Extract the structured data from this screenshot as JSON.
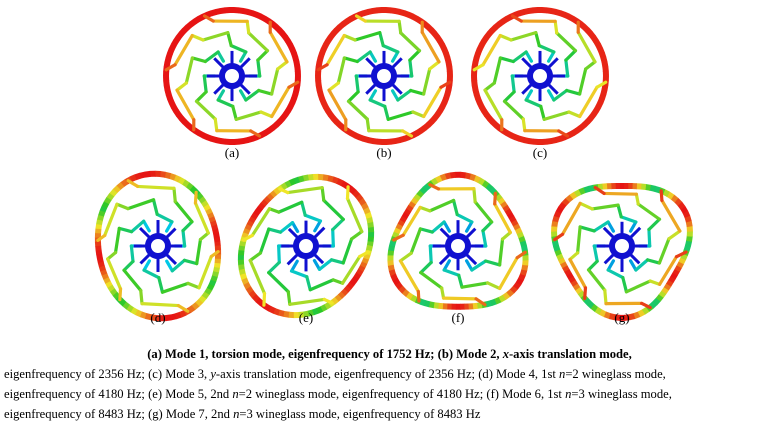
{
  "panels": [
    "(a)",
    "(b)",
    "(c)",
    "(d)",
    "(e)",
    "(f)",
    "(g)"
  ],
  "caption": {
    "lines": [
      [
        "(a) Mode 1, torsion mode, eigenfrequency of 1752 Hz; (b) Mode 2, ",
        "x",
        "-axis translation mode,"
      ],
      [
        "eigenfrequency of 2356 Hz; (c) Mode 3, ",
        "y",
        "-axis translation mode, eigenfrequency of 2356 Hz; (d) Mode 4, 1st ",
        "n",
        "=2 wineglass mode,"
      ],
      [
        "eigenfrequency of 4180 Hz; (e) Mode 5, 2nd ",
        "n",
        "=2 wineglass mode, eigenfrequency of 4180 Hz; (f) Mode 6, 1st ",
        "n",
        "=3 wineglass mode,"
      ],
      [
        "eigenfrequency of 8483 Hz; (g) Mode 7, 2nd ",
        "n",
        "=3 wineglass mode, eigenfrequency of 8483 Hz"
      ]
    ]
  }
}
